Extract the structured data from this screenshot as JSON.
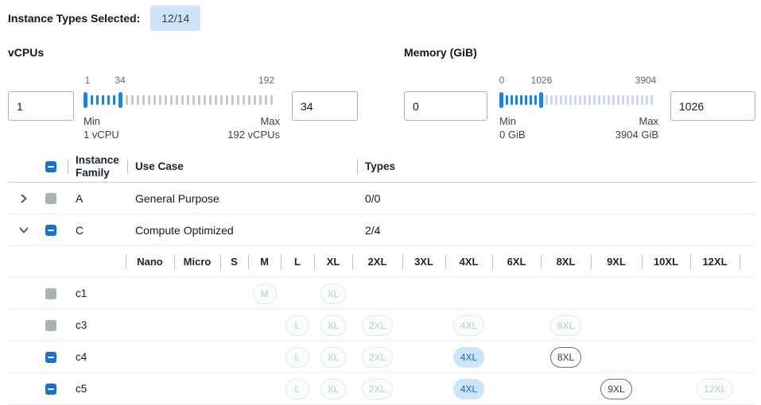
{
  "toolbar": {
    "selected_label": "Instance Types Selected:",
    "selected_count": "12/14"
  },
  "filters": {
    "vcpus": {
      "title": "vCPUs",
      "from_value": "1",
      "to_value": "34",
      "scale_labels": [
        "1",
        "34",
        "192"
      ],
      "min_label": "Min",
      "min_value": "1 vCPU",
      "max_label": "Max",
      "max_value": "192 vCPUs",
      "slider": {
        "active_ticks": 5,
        "inactive_ticks": 27
      }
    },
    "memory": {
      "title": "Memory (GiB)",
      "from_value": "0",
      "to_value": "1026",
      "scale_labels": [
        "0",
        "1026",
        "3904"
      ],
      "min_label": "Min",
      "min_value": "0 GiB",
      "max_label": "Max",
      "max_value": "3904 GiB",
      "slider": {
        "active_ticks": 7,
        "inactive_ticks": 23
      }
    }
  },
  "table": {
    "headers": {
      "family": "Instance Family",
      "use_case": "Use Case",
      "types": "Types"
    },
    "select_all_state": "indeterminate",
    "size_columns": [
      "Nano",
      "Micro",
      "S",
      "M",
      "L",
      "XL",
      "2XL",
      "3XL",
      "4XL",
      "6XL",
      "8XL",
      "9XL",
      "10XL",
      "12XL"
    ],
    "family_rows": [
      {
        "name": "A",
        "use_case": "General Purpose",
        "types": "0/0",
        "expanded": false,
        "checkbox": "disabled"
      },
      {
        "name": "C",
        "use_case": "Compute Optimized",
        "types": "2/4",
        "expanded": true,
        "checkbox": "indeterminate"
      }
    ],
    "instance_rows": [
      {
        "name": "c1",
        "checkbox": "disabled",
        "pills": {
          "M": "disabled",
          "XL": "disabled"
        }
      },
      {
        "name": "c3",
        "checkbox": "disabled",
        "pills": {
          "L": "disabled",
          "XL": "disabled",
          "2XL": "disabled",
          "4XL": "disabled",
          "8XL": "disabled"
        }
      },
      {
        "name": "c4",
        "checkbox": "indeterminate",
        "pills": {
          "L": "disabled",
          "XL": "disabled",
          "2XL": "disabled",
          "4XL": "selected",
          "8XL": "enabled"
        }
      },
      {
        "name": "c5",
        "checkbox": "indeterminate",
        "pills": {
          "L": "disabled",
          "XL": "disabled",
          "2XL": "disabled",
          "4XL": "selected",
          "9XL": "enabled",
          "12XL": "disabled"
        }
      }
    ]
  },
  "colors": {
    "accent_blue": "#1673d3",
    "badge_bg": "#cfe4fa",
    "pill_selected_bg": "#cde5fa",
    "pill_selected_text": "#0b72cf",
    "disabled_gray": "#abb1b8",
    "tick_active": "#1586e3",
    "tick_inactive_vcpu": "#c5cad0",
    "tick_inactive_memory": "#ccd8ec"
  }
}
